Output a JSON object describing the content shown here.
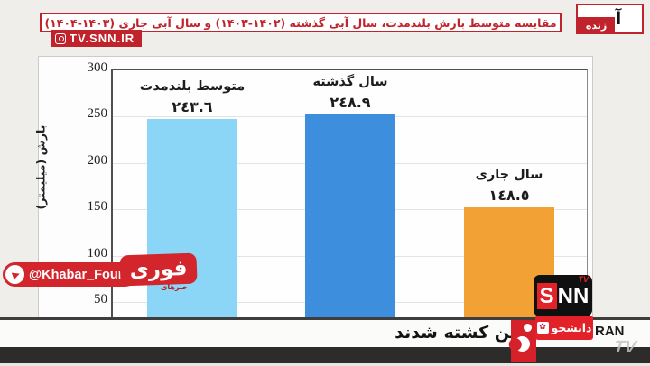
{
  "header": {
    "title": "مقایسه متوسط بارش بلندمدت، سال آبی گذشته (۱۴۰۲-۱۴۰۳) و سال آبی جاری (۱۴۰۳-۱۴۰۴)",
    "channel_url": "TV.SNN.IR",
    "live_label": "زنده",
    "topic_label": "آب"
  },
  "chart_data": {
    "type": "bar",
    "categories": [
      "متوسط بلندمدت",
      "سال گذشته",
      "سال جاری"
    ],
    "values": [
      243.6,
      248.9,
      148.5
    ],
    "value_labels": [
      "٢٤٣.٦",
      "٢٤٨.٩",
      "١٤٨.٥"
    ],
    "bar_colors": [
      "#8BD5F6",
      "#3E8EDE",
      "#F2A134"
    ],
    "title": "مقایسه متوسط بارش بلندمدت، سال آبی گذشته و سال آبی جاری",
    "xlabel": "",
    "ylabel": "بارش (میلیمتر)",
    "yticks": [
      300,
      250,
      200,
      150,
      100,
      50
    ],
    "ylim": [
      28,
      300
    ],
    "grid": true,
    "legend_position": "none"
  },
  "watermark": {
    "handle": "@Khabar_Fouri",
    "logo_text": "فوری",
    "logo_subtext": "خبرهای"
  },
  "ticker": {
    "text": "تن کشته شدند"
  },
  "branding": {
    "snn_s": "S",
    "snn_nn": "NN",
    "snn_tv": "TV",
    "daneshjoo": "دانشجو",
    "daneshjoo_emblem": "✿",
    "ran_text": "RAN",
    "tv_watermark": "TV"
  },
  "colors": {
    "accent_red": "#C0232B",
    "snn_red": "#E32128",
    "bar_light_blue": "#8BD5F6",
    "bar_blue": "#3E8EDE",
    "bar_orange": "#F2A134",
    "axis_line": "#3F3E3C"
  }
}
